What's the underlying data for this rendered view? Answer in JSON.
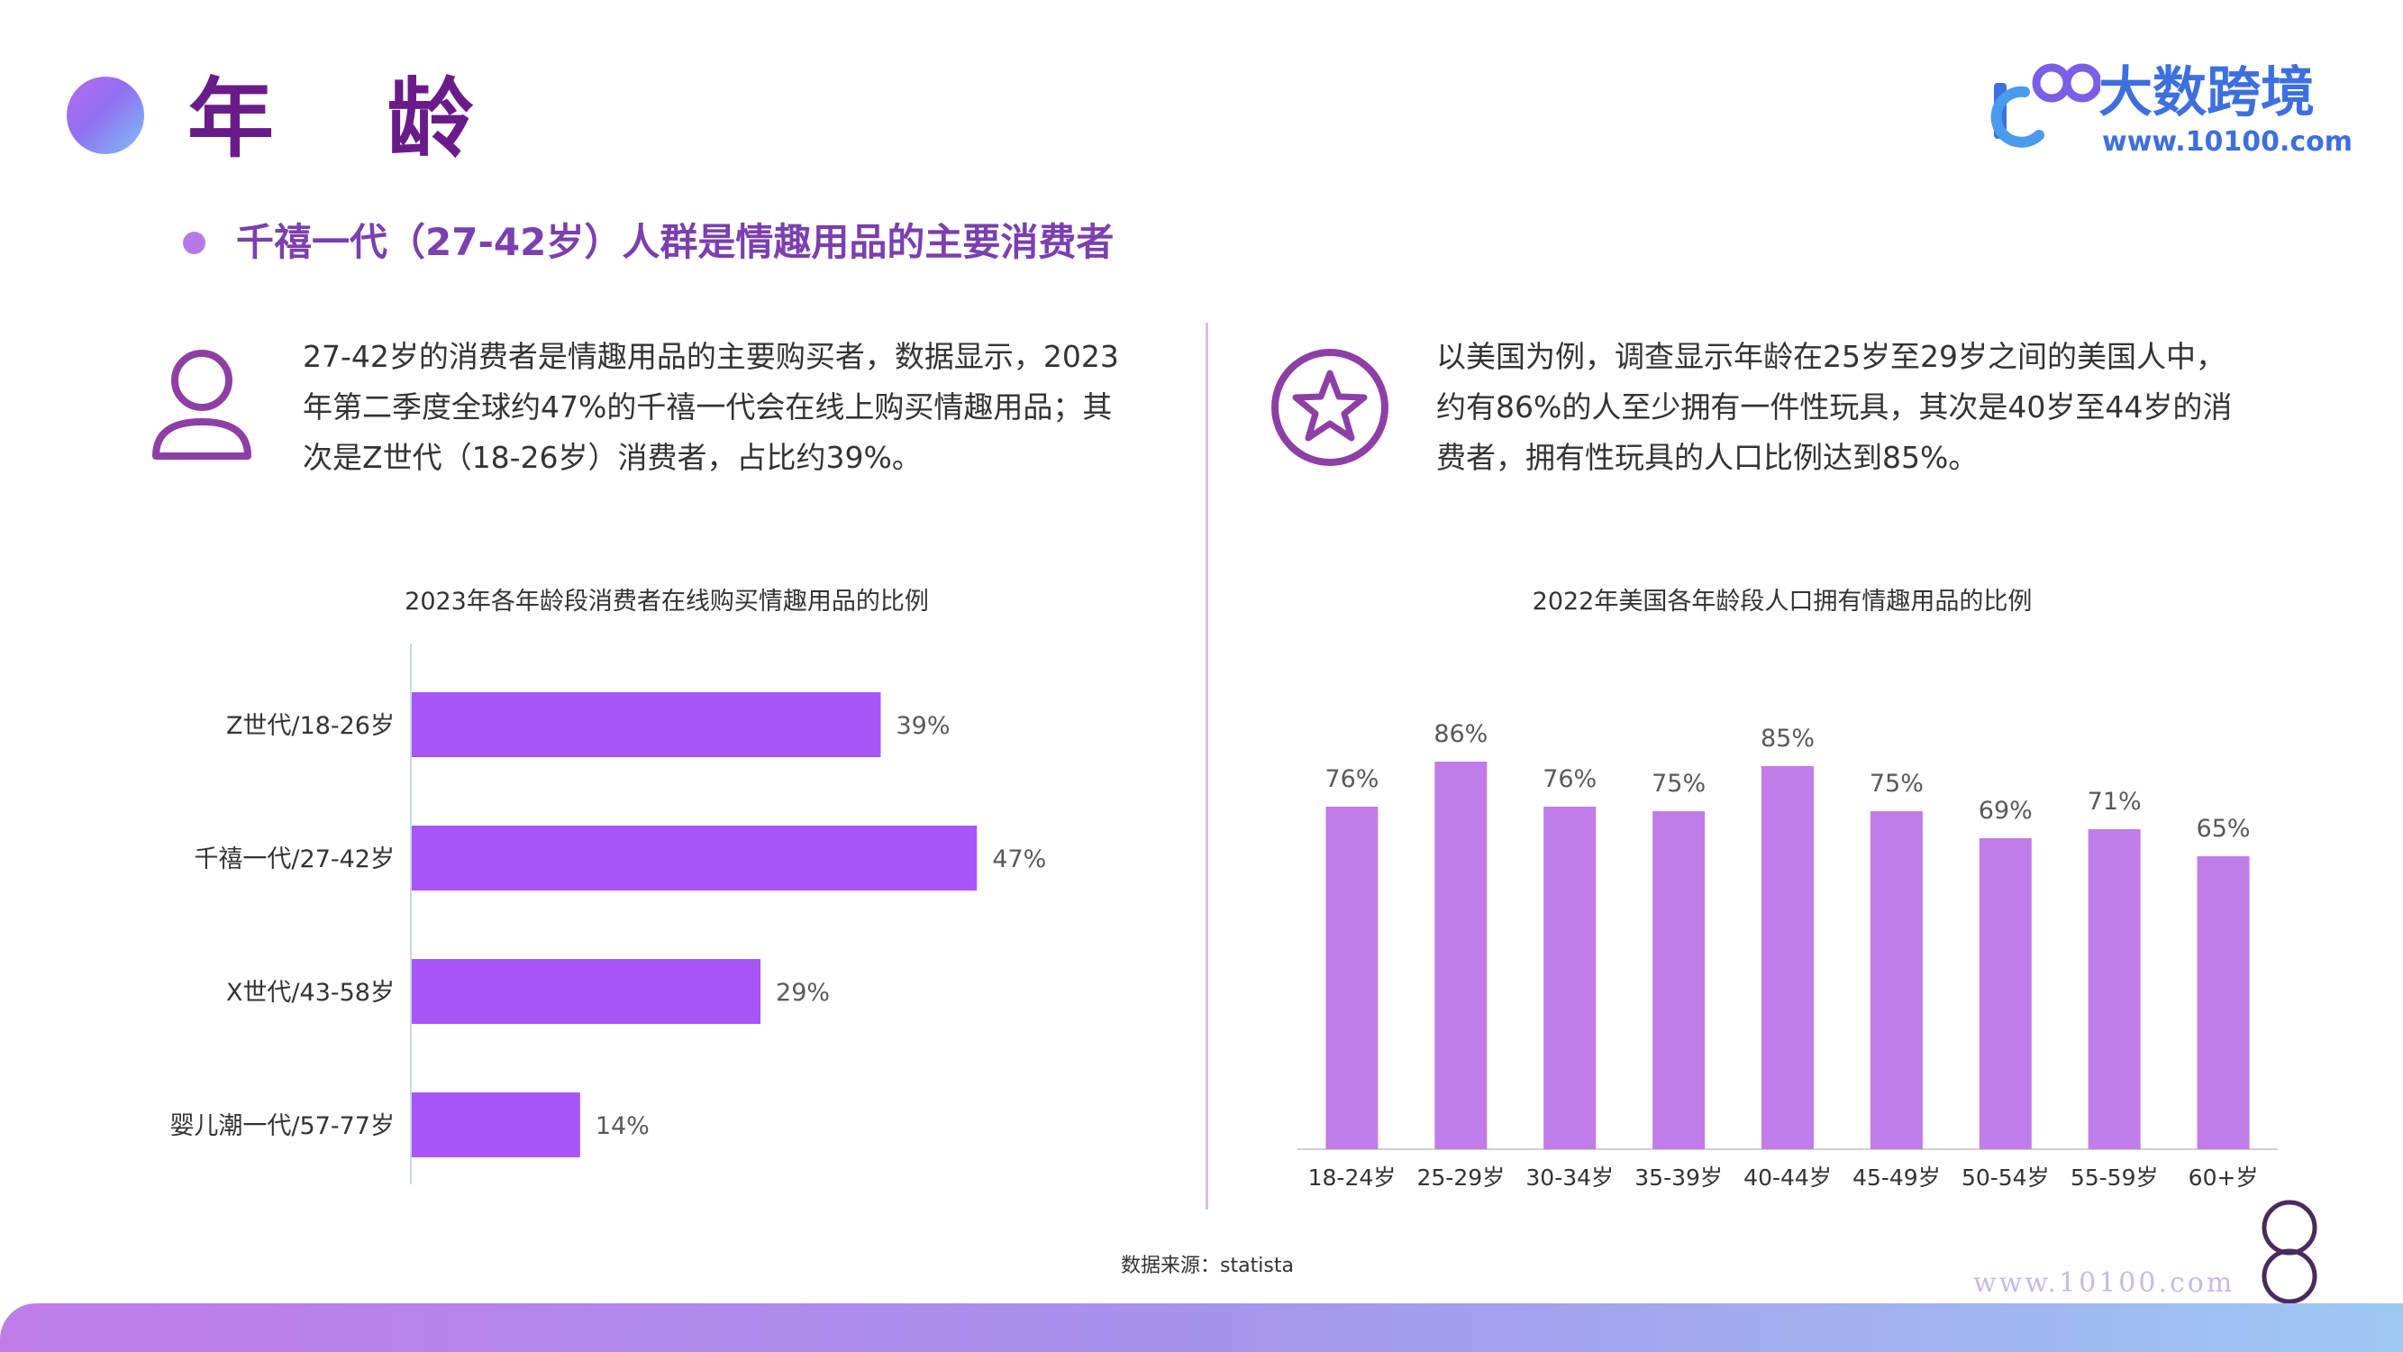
{
  "header": {
    "title": "年 龄",
    "logo_name": "大数跨境",
    "logo_url": "www.10100.com"
  },
  "subtitle": "千禧一代（27-42岁）人群是情趣用品的主要消费者",
  "left_panel": {
    "icon": "person-icon",
    "text": "27-42岁的消费者是情趣用品的主要购买者，数据显示，2023年第二季度全球约47%的千禧一代会在线上购买情趣用品；其次是Z世代（18-26岁）消费者，占比约39%。"
  },
  "right_panel": {
    "icon": "star-icon",
    "text": "以美国为例，调查显示年龄在25岁至29岁之间的美国人中，约有86%的人至少拥有一件性玩具，其次是40岁至44岁的消费者，拥有性玩具的人口比例达到85%。"
  },
  "source": "数据来源：statista",
  "watermark": "www.10100.com",
  "colors": {
    "title": "#6a1b8a",
    "subtitle": "#7b3fb0",
    "bar_horizontal": "#a855f7",
    "bar_vertical": "#c07ce8",
    "logo": "#3d6fe0"
  },
  "chart_data": [
    {
      "type": "bar",
      "orientation": "horizontal",
      "title": "2023年各年龄段消费者在线购买情趣用品的比例",
      "categories": [
        "Z世代/18-26岁",
        "千禧一代/27-42岁",
        "X世代/43-58岁",
        "婴儿潮一代/57-77岁"
      ],
      "values": [
        39,
        47,
        29,
        14
      ],
      "labels": [
        "39%",
        "47%",
        "29%",
        "14%"
      ],
      "unit": "%",
      "xlim": [
        0,
        55
      ],
      "grid": false
    },
    {
      "type": "bar",
      "orientation": "vertical",
      "title": "2022年美国各年龄段人口拥有情趣用品的比例",
      "categories": [
        "18-24岁",
        "25-29岁",
        "30-34岁",
        "35-39岁",
        "40-44岁",
        "45-49岁",
        "50-54岁",
        "55-59岁",
        "60+岁"
      ],
      "values": [
        76,
        86,
        76,
        75,
        85,
        75,
        69,
        71,
        65
      ],
      "labels": [
        "76%",
        "86%",
        "76%",
        "75%",
        "85%",
        "75%",
        "69%",
        "71%",
        "65%"
      ],
      "unit": "%",
      "ylim": [
        0,
        100
      ],
      "grid": false
    }
  ]
}
